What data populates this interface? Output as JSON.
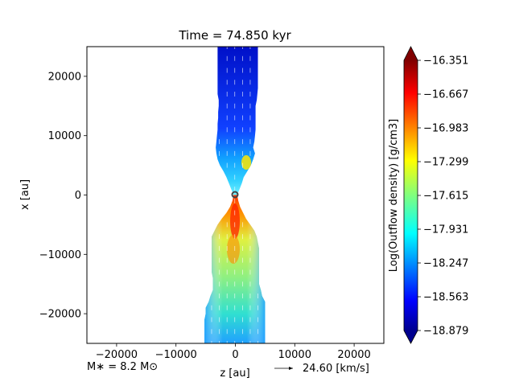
{
  "chart_data": {
    "type": "heatmap",
    "title": "Time = 74.850 kyr",
    "xlabel": "z [au]",
    "ylabel": "x [au]",
    "xlim": [
      -25000,
      25000
    ],
    "ylim": [
      -25000,
      25000
    ],
    "xticks": [
      -20000,
      -10000,
      0,
      10000,
      20000
    ],
    "yticks": [
      20000,
      10000,
      0,
      -10000,
      -20000
    ],
    "xtick_labels": [
      "−20000",
      "−10000",
      "0",
      "10000",
      "20000"
    ],
    "ytick_labels": [
      "20000",
      "10000",
      "0",
      "−10000",
      "−20000"
    ],
    "colorbar": {
      "label": "Log(Outflow density) [g/cm3]",
      "min": -18.879,
      "max": -16.351,
      "colormap": "jet",
      "ticks": [
        -16.351,
        -16.667,
        -16.983,
        -17.299,
        -17.615,
        -17.931,
        -18.247,
        -18.563,
        -18.879
      ],
      "tick_labels": [
        "−16.351",
        "−16.667",
        "−16.983",
        "−17.299",
        "−17.615",
        "−17.931",
        "−18.247",
        "−18.563",
        "−18.879"
      ]
    },
    "grid": false,
    "annotations": {
      "mass": "M∗ = 8.2 M⊙",
      "velocity_key": "24.60 [km/s]"
    },
    "outflow_upper": {
      "description_units": "half-width of lobe in au as function of x in au",
      "x": [
        0,
        1000,
        2000,
        3000,
        4000,
        5000,
        6000,
        7000,
        8000,
        9000,
        10000,
        11000,
        12000,
        13000,
        14000,
        15000,
        16000,
        17000,
        18000,
        19000,
        20000,
        21000,
        22000,
        23000,
        24000,
        25000
      ],
      "z_min": [
        -300,
        -700,
        -1100,
        -1500,
        -2000,
        -2600,
        -3000,
        -3200,
        -3300,
        -3200,
        -3100,
        -3000,
        -3000,
        -2900,
        -2900,
        -2800,
        -2800,
        -3000,
        -3000,
        -3000,
        -3000,
        -3000,
        -3000,
        -3000,
        -3000,
        -3000
      ],
      "z_max": [
        300,
        700,
        1100,
        1400,
        2000,
        2600,
        3000,
        3300,
        3000,
        3200,
        3300,
        3400,
        3400,
        3400,
        3400,
        3400,
        3600,
        3700,
        3800,
        3800,
        3800,
        3800,
        3800,
        3800,
        3800,
        3800
      ]
    },
    "outflow_lower": {
      "x": [
        0,
        -1000,
        -2000,
        -3000,
        -4000,
        -5000,
        -6000,
        -7000,
        -8000,
        -9000,
        -10000,
        -11000,
        -12000,
        -13000,
        -14000,
        -15000,
        -16000,
        -17000,
        -18000,
        -19000,
        -20000,
        -21000,
        -22000,
        -23000,
        -24000,
        -25000
      ],
      "z_min": [
        -300,
        -500,
        -900,
        -1500,
        -2300,
        -3000,
        -3500,
        -4000,
        -4000,
        -4000,
        -4000,
        -4000,
        -4000,
        -4000,
        -3800,
        -3800,
        -3800,
        -4200,
        -4500,
        -5000,
        -5000,
        -5200,
        -5200,
        -5200,
        -5200,
        -5200
      ],
      "z_max": [
        300,
        500,
        800,
        1300,
        1800,
        2500,
        3200,
        3600,
        3800,
        4000,
        4000,
        4000,
        4000,
        4000,
        4000,
        4000,
        4300,
        4500,
        5000,
        5000,
        5000,
        5000,
        5000,
        5000,
        5000,
        5000
      ]
    }
  }
}
